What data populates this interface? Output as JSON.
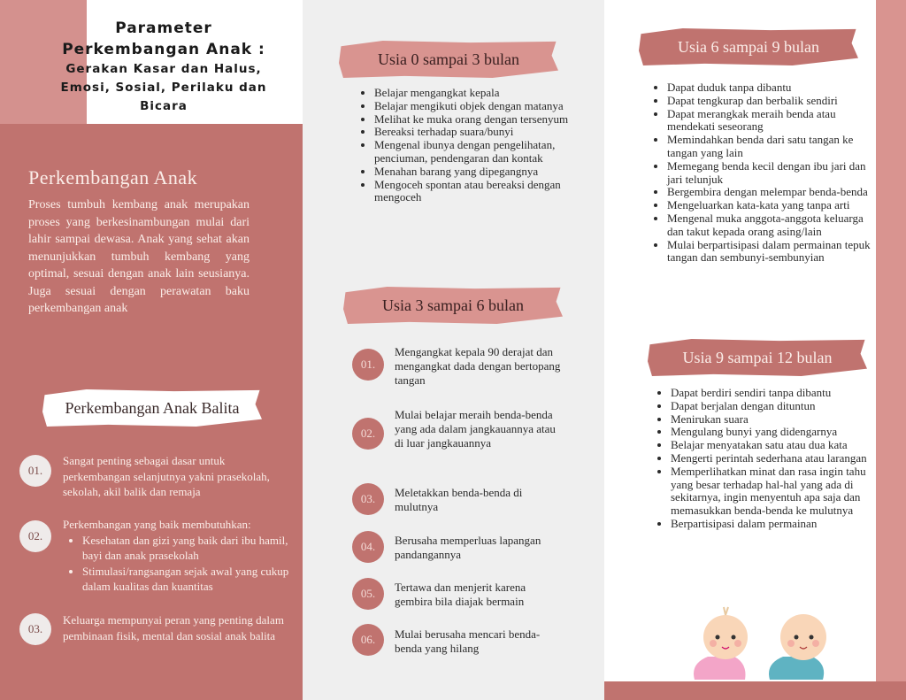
{
  "title": {
    "line1": "Parameter",
    "line2": "Perkembangan Anak :",
    "line3": "Gerakan Kasar dan Halus,",
    "line4": "Emosi, Sosial, Perilaku dan",
    "line5": "Bicara"
  },
  "intro": {
    "heading": "Perkembangan Anak",
    "text": "Proses tumbuh kembang anak merupakan proses yang berkesinambungan mulai dari lahir sampai dewasa. Anak yang sehat akan menunjukkan tumbuh kembang yang optimal, sesuai dengan anak lain seusianya. Juga sesuai dengan perawatan baku perkembangan anak"
  },
  "balita": {
    "heading": "Perkembangan Anak Balita",
    "items": [
      {
        "num": "01.",
        "text": "Sangat penting sebagai  dasar untuk perkembangan selanjutnya yakni prasekolah, sekolah, akil balik dan remaja"
      },
      {
        "num": "02.",
        "text": "Perkembangan yang baik membutuhkan:",
        "sub": [
          "Kesehatan dan gizi yang baik dari ibu hamil, bayi dan anak prasekolah",
          "Stimulasi/rangsangan sejak awal yang cukup dalam kualitas dan kuantitas"
        ]
      },
      {
        "num": "03.",
        "text": "Keluarga mempunyai peran yang penting dalam pembinaan fisik, mental dan sosial anak balita"
      }
    ]
  },
  "age_0_3": {
    "heading": "Usia 0 sampai 3 bulan",
    "items": [
      "Belajar mengangkat kepala",
      "Belajar mengikuti objek dengan matanya",
      "Melihat ke muka orang dengan tersenyum",
      "Bereaksi terhadap suara/bunyi",
      "Mengenal ibunya dengan pengelihatan, penciuman, pendengaran dan kontak",
      "Menahan barang yang dipegangnya",
      "Mengoceh spontan atau bereaksi dengan mengoceh"
    ]
  },
  "age_3_6": {
    "heading": "Usia 3 sampai 6 bulan",
    "items": [
      {
        "num": "01.",
        "text": "Mengangkat kepala 90 derajat dan mengangkat dada dengan bertopang tangan"
      },
      {
        "num": "02.",
        "text": "Mulai belajar meraih benda-benda yang ada dalam jangkauannya atau di luar jangkauannya"
      },
      {
        "num": "03.",
        "text": "Meletakkan benda-benda di mulutnya"
      },
      {
        "num": "04.",
        "text": "Berusaha memperluas lapangan pandangannya"
      },
      {
        "num": "05.",
        "text": "Tertawa dan menjerit karena gembira bila diajak bermain"
      },
      {
        "num": "06.",
        "text": "Mulai berusaha mencari benda-benda yang hilang"
      }
    ]
  },
  "age_6_9": {
    "heading": "Usia 6 sampai 9 bulan",
    "items": [
      "Dapat duduk tanpa dibantu",
      "Dapat tengkurap dan berbalik sendiri",
      "Dapat merangkak meraih benda atau mendekati seseorang",
      "Memindahkan benda dari satu tangan ke tangan yang lain",
      "Memegang benda kecil dengan ibu jari dan jari telunjuk",
      "Bergembira dengan melempar benda-benda",
      "Mengeluarkan kata-kata yang tanpa arti",
      "Mengenal muka anggota-anggota keluarga dan takut kepada orang asing/lain",
      "Mulai berpartisipasi dalam permainan tepuk tangan dan sembunyi-sembunyian"
    ]
  },
  "age_9_12": {
    "heading": "Usia 9 sampai 12 bulan",
    "items": [
      "Dapat berdiri sendiri tanpa dibantu",
      "Dapat berjalan dengan dituntun",
      "Menirukan suara",
      "Mengulang bunyi yang didengarnya",
      "Belajar menyatakan satu atau dua kata",
      "Mengerti perintah sederhana atau larangan",
      "Memperlihatkan minat dan rasa ingin tahu yang besar terhadap hal-hal yang ada di sekitarnya, ingin menyentuh apa saja dan memasukkan benda-benda ke mulutnya",
      "Berpartisipasi dalam permainan"
    ]
  },
  "colors": {
    "rose_dark": "#c0736f",
    "rose_light": "#d99490",
    "panel_gray": "#efefef"
  },
  "illustration": "crawling-babies-icon"
}
